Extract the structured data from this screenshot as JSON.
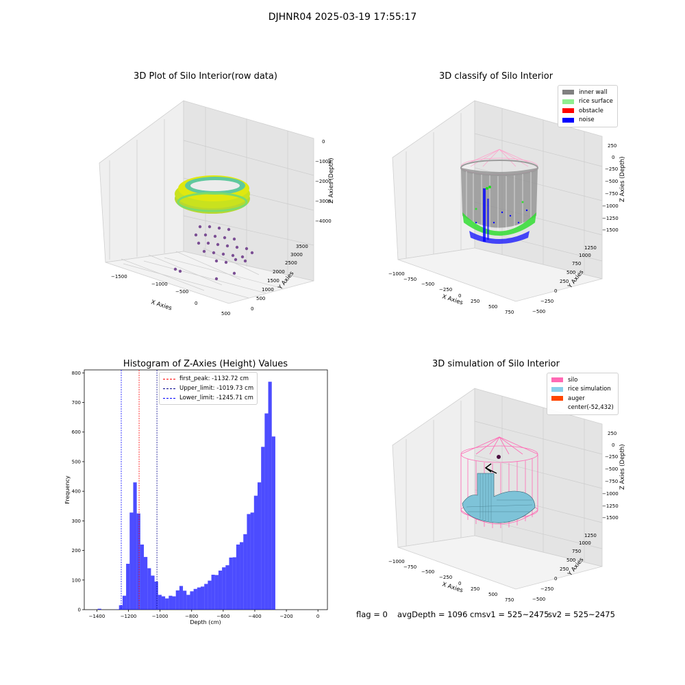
{
  "figure": {
    "suptitle": "DJHNR04 2025-03-19 17:55:17",
    "footer": {
      "flag": "flag = 0",
      "avg_depth": "avgDepth = 1096 cmsv1 = 525~2475",
      "sv2": "sv2 = 525~2475"
    }
  },
  "plots": {
    "raw": {
      "title": "3D Plot of Silo Interior(row data)",
      "xlabel": "X Axies",
      "ylabel": "Y Axies",
      "zlabel": "Z Axies (Depth)",
      "xticks": [
        "−1500",
        "−1000",
        "−500",
        "0",
        "500"
      ],
      "yticks": [
        "0",
        "500",
        "1000",
        "1500",
        "2000",
        "2500",
        "3000",
        "3500"
      ],
      "zticks": [
        "0",
        "−1000",
        "−2000",
        "−3000",
        "−4000"
      ]
    },
    "classify": {
      "title": "3D classify of Silo Interior",
      "xlabel": "X Axies",
      "ylabel": "Y Axies",
      "zlabel": "Z Axies (Depth)",
      "xticks": [
        "−1000",
        "−750",
        "−500",
        "−250",
        "0",
        "250",
        "500",
        "750"
      ],
      "yticks": [
        "−500",
        "−250",
        "0",
        "250",
        "500",
        "750",
        "1000",
        "1250"
      ],
      "zticks": [
        "250",
        "0",
        "−250",
        "−500",
        "−750",
        "−1000",
        "−1250",
        "−1500"
      ],
      "legend": [
        {
          "label": "inner wall",
          "color": "#808080"
        },
        {
          "label": "rice surface",
          "color": "#90ee90"
        },
        {
          "label": "obstacle",
          "color": "#ff0000"
        },
        {
          "label": "noise",
          "color": "#0000ff"
        }
      ]
    },
    "simulation": {
      "title": "3D simulation of Silo Interior",
      "xlabel": "X Axies",
      "ylabel": "Y Axies",
      "zlabel": "Z Axies (Depth)",
      "xticks": [
        "−1000",
        "−750",
        "−500",
        "−250",
        "0",
        "250",
        "500",
        "750"
      ],
      "yticks": [
        "−500",
        "−250",
        "0",
        "250",
        "500",
        "750",
        "1000",
        "1250"
      ],
      "zticks": [
        "250",
        "0",
        "−250",
        "−500",
        "−750",
        "−1000",
        "−1250",
        "−1500"
      ],
      "legend": [
        {
          "label": "silo",
          "color": "#ff69b4"
        },
        {
          "label": "rice simulation",
          "color": "#87ceeb"
        },
        {
          "label": "auger",
          "color": "#ff4500"
        },
        {
          "label": "center(-52,432)",
          "color": ""
        }
      ]
    }
  },
  "chart_data": [
    {
      "type": "bar",
      "title": "Histogram of Z-Axies (Height) Values",
      "xlabel": "Depth (cm)",
      "ylabel": "Frequency",
      "xlim": [
        -1480,
        60
      ],
      "ylim": [
        0,
        810
      ],
      "xticks": [
        -1400,
        -1200,
        -1000,
        -800,
        -600,
        -400,
        -200,
        0
      ],
      "xtick_labels": [
        "−1400",
        "−1200",
        "−1000",
        "−800",
        "−600",
        "−400",
        "−200",
        "0"
      ],
      "yticks": [
        0,
        100,
        200,
        300,
        400,
        500,
        600,
        700,
        800
      ],
      "bar_color": "#0000ff",
      "bin_width": 22.5,
      "bin_start": -1395,
      "bins": [
        {
          "start": -1395,
          "value": 3
        },
        {
          "start": -1282.5,
          "value": 1
        },
        {
          "start": -1260,
          "value": 15
        },
        {
          "start": -1237.5,
          "value": 47
        },
        {
          "start": -1215,
          "value": 155
        },
        {
          "start": -1192.5,
          "value": 328
        },
        {
          "start": -1170,
          "value": 430
        },
        {
          "start": -1147.5,
          "value": 325
        },
        {
          "start": -1125,
          "value": 220
        },
        {
          "start": -1102.5,
          "value": 178
        },
        {
          "start": -1080,
          "value": 140
        },
        {
          "start": -1057.5,
          "value": 115
        },
        {
          "start": -1035,
          "value": 95
        },
        {
          "start": -1012.5,
          "value": 50
        },
        {
          "start": -990,
          "value": 45
        },
        {
          "start": -967.5,
          "value": 38
        },
        {
          "start": -945,
          "value": 47
        },
        {
          "start": -922.5,
          "value": 45
        },
        {
          "start": -900,
          "value": 65
        },
        {
          "start": -877.5,
          "value": 80
        },
        {
          "start": -855,
          "value": 64
        },
        {
          "start": -832.5,
          "value": 50
        },
        {
          "start": -810,
          "value": 62
        },
        {
          "start": -787.5,
          "value": 70
        },
        {
          "start": -765,
          "value": 75
        },
        {
          "start": -742.5,
          "value": 78
        },
        {
          "start": -720,
          "value": 87
        },
        {
          "start": -697.5,
          "value": 98
        },
        {
          "start": -675,
          "value": 118
        },
        {
          "start": -652.5,
          "value": 117
        },
        {
          "start": -630,
          "value": 132
        },
        {
          "start": -607.5,
          "value": 143
        },
        {
          "start": -585,
          "value": 150
        },
        {
          "start": -562.5,
          "value": 176
        },
        {
          "start": -540,
          "value": 177
        },
        {
          "start": -517.5,
          "value": 220
        },
        {
          "start": -495,
          "value": 228
        },
        {
          "start": -472.5,
          "value": 255
        },
        {
          "start": -450,
          "value": 323
        },
        {
          "start": -427.5,
          "value": 328
        },
        {
          "start": -405,
          "value": 385
        },
        {
          "start": -382.5,
          "value": 430
        },
        {
          "start": -360,
          "value": 550
        },
        {
          "start": -337.5,
          "value": 663
        },
        {
          "start": -315,
          "value": 770
        },
        {
          "start": -292.5,
          "value": 585
        }
      ],
      "vlines": [
        {
          "label": "first_peak: -1132.72 cm",
          "x": -1132.72,
          "color": "#ff0000"
        },
        {
          "label": "Upper_limit: -1019.73 cm",
          "x": -1019.73,
          "color": "#00008b"
        },
        {
          "label": "Lower_limit: -1245.71 cm",
          "x": -1245.71,
          "color": "#0000ff"
        }
      ],
      "grid": false,
      "legend_position": "top-center"
    }
  ]
}
